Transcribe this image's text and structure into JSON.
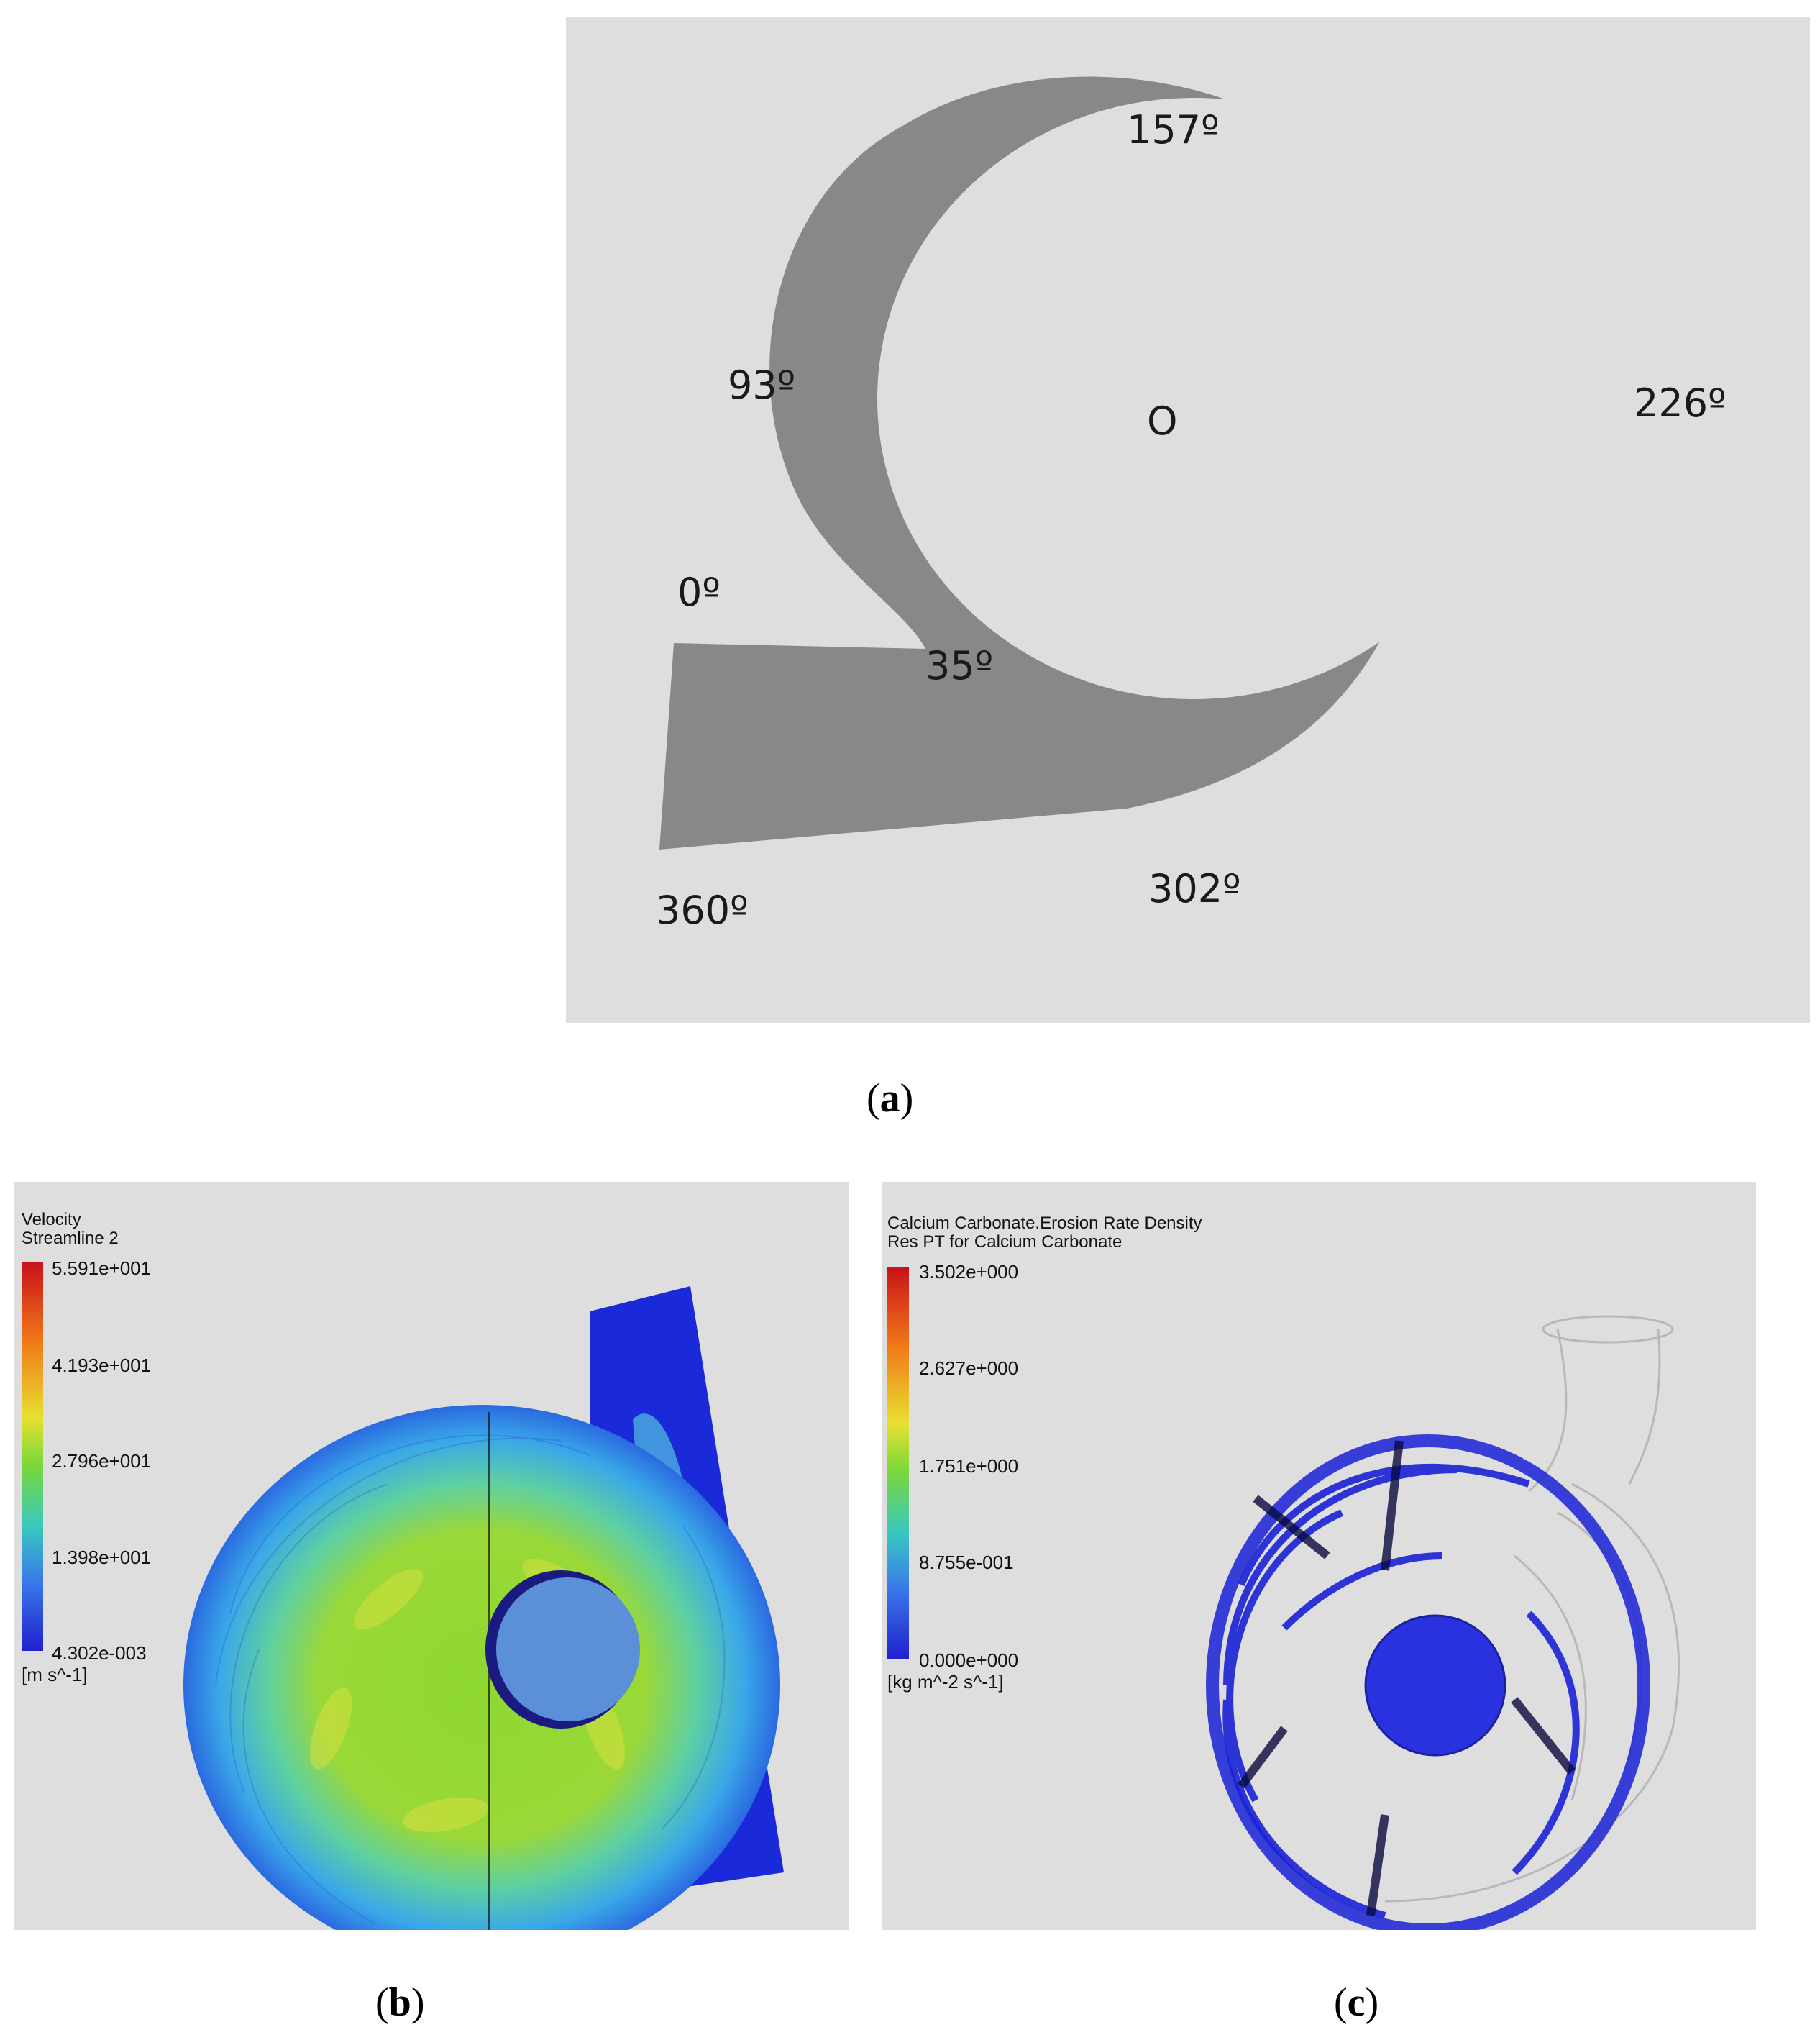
{
  "panel_a": {
    "angles": {
      "a157": "157º",
      "a93": "93º",
      "a226": "226º",
      "center": "O",
      "a0": "0º",
      "a35": "35º",
      "a360": "360º",
      "a302": "302º"
    },
    "caption_letter": "a"
  },
  "panel_b": {
    "legend_title_1": "Velocity",
    "legend_title_2": "Streamline 2",
    "ticks": [
      "5.591e+001",
      "4.193e+001",
      "2.796e+001",
      "1.398e+001",
      "4.302e-003"
    ],
    "unit": "[m s^-1]",
    "caption_letter": "b"
  },
  "panel_c": {
    "legend_title_1": "Calcium Carbonate.Erosion Rate Density",
    "legend_title_2": "Res PT for Calcium Carbonate",
    "ticks": [
      "3.502e+000",
      "2.627e+000",
      "1.751e+000",
      "8.755e-001",
      "0.000e+000"
    ],
    "unit": "[kg m^-2 s^-1]",
    "caption_letter": "c"
  },
  "colors": {
    "casing_gray": "#888888",
    "background_gray": "#dedede",
    "impeller_blue": "#5b8fd8",
    "streamline_blue": "#1a22d6"
  }
}
